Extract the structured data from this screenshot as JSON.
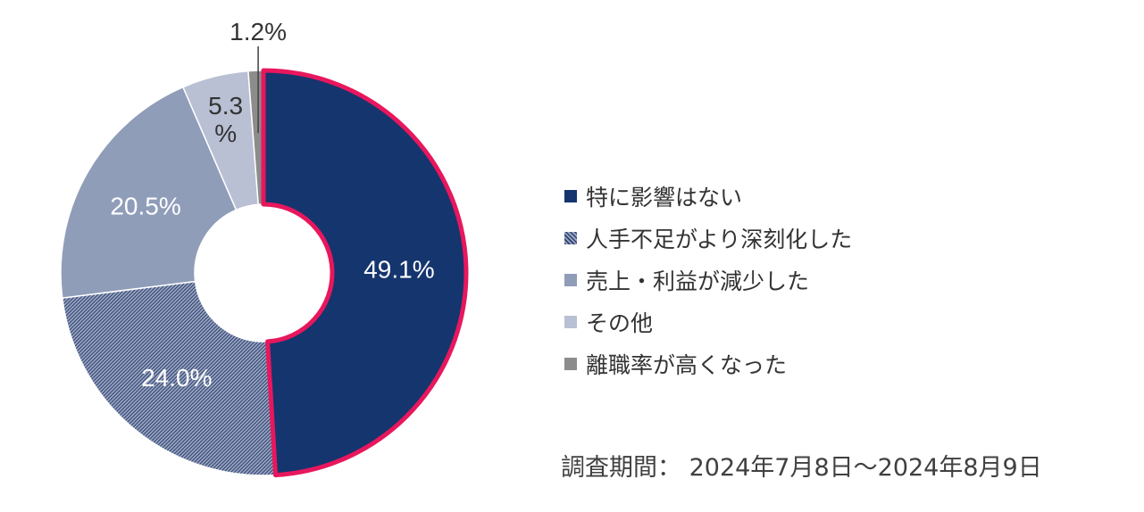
{
  "chart_data": {
    "type": "pie",
    "donut": true,
    "categories": [
      "特に影響はない",
      "人手不足がより深刻化した",
      "売上・利益が減少した",
      "その他",
      "離職率が高くなった"
    ],
    "values": [
      49.1,
      24.0,
      20.5,
      5.3,
      1.2
    ],
    "data_labels": [
      "49.1%",
      "24.0%",
      "20.5%",
      "5.3%",
      "1.2%"
    ],
    "colors": [
      "#15356e",
      "#7585a8",
      "#8f9db9",
      "#b9c0d4",
      "#8c8c8c"
    ],
    "patterns": [
      "solid",
      "hatched",
      "solid",
      "solid",
      "solid"
    ],
    "highlight": {
      "category": "特に影響はない",
      "outline_color": "#e8175d"
    },
    "legend_placement": "right"
  },
  "legend": {
    "items": [
      {
        "label": "特に影響はない",
        "color": "#15356e",
        "pattern": "solid"
      },
      {
        "label": " 人手不足がより深刻化した",
        "color": "#7585a8",
        "pattern": "hatched"
      },
      {
        "label": "売上・利益が減少した",
        "color": "#8f9db9",
        "pattern": "solid"
      },
      {
        "label": "その他",
        "color": "#b9c0d4",
        "pattern": "solid"
      },
      {
        "label": "離職率が高くなった",
        "color": "#8c8c8c",
        "pattern": "solid"
      }
    ]
  },
  "footer": {
    "survey_period": "調査期間： 2024年7月8日～2024年8月9日"
  }
}
